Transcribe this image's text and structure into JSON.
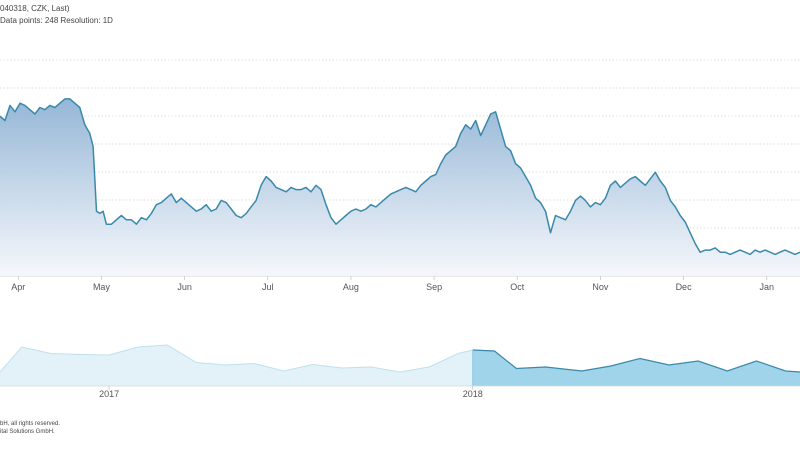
{
  "header": {
    "line1": "040318, CZK, Last)",
    "line2": "Data points: 248 Resolution: 1D"
  },
  "footer": {
    "line1": "bH, all rights reserved.",
    "line2": "ital Solutions GmbH."
  },
  "colors": {
    "line": "#3a89aa",
    "area_top": "#8fb3d4",
    "area_bottom": "#f4f6fb",
    "grid": "#d3d3d3",
    "navigator_light": "#e3f2f8",
    "navigator_selected": "#9fd4ea",
    "navigator_line": "#7cc3e0"
  },
  "chart_data": [
    {
      "type": "area",
      "name": "main-price-chart",
      "grid": "horizontal-dotted",
      "x_tick_labels": [
        "Apr",
        "May",
        "Jun",
        "Jul",
        "Aug",
        "Sep",
        "Oct",
        "Nov",
        "Dec",
        "Jan"
      ],
      "x_tick_positions": [
        0.5,
        1.5,
        2.5,
        3.5,
        4.5,
        5.5,
        6.5,
        7.5,
        8.5,
        9.5
      ],
      "x_range": [
        0.28,
        9.9
      ],
      "y_range": [
        0,
        100
      ],
      "series_points": [
        [
          0.28,
          74
        ],
        [
          0.34,
          72
        ],
        [
          0.4,
          79
        ],
        [
          0.46,
          76
        ],
        [
          0.52,
          80
        ],
        [
          0.58,
          79
        ],
        [
          0.64,
          77
        ],
        [
          0.7,
          75
        ],
        [
          0.76,
          78
        ],
        [
          0.82,
          77
        ],
        [
          0.88,
          79
        ],
        [
          0.94,
          78
        ],
        [
          1.0,
          80
        ],
        [
          1.06,
          82
        ],
        [
          1.12,
          82
        ],
        [
          1.18,
          80
        ],
        [
          1.24,
          78
        ],
        [
          1.3,
          70
        ],
        [
          1.36,
          66
        ],
        [
          1.4,
          60
        ],
        [
          1.44,
          30
        ],
        [
          1.48,
          29
        ],
        [
          1.52,
          30
        ],
        [
          1.56,
          24
        ],
        [
          1.62,
          24
        ],
        [
          1.68,
          26
        ],
        [
          1.74,
          28
        ],
        [
          1.8,
          26
        ],
        [
          1.86,
          26
        ],
        [
          1.92,
          24
        ],
        [
          1.98,
          27
        ],
        [
          2.04,
          26
        ],
        [
          2.1,
          29
        ],
        [
          2.16,
          33
        ],
        [
          2.22,
          34
        ],
        [
          2.28,
          36
        ],
        [
          2.34,
          38
        ],
        [
          2.4,
          34
        ],
        [
          2.46,
          36
        ],
        [
          2.52,
          34
        ],
        [
          2.58,
          32
        ],
        [
          2.64,
          30
        ],
        [
          2.7,
          31
        ],
        [
          2.76,
          33
        ],
        [
          2.82,
          30
        ],
        [
          2.88,
          31
        ],
        [
          2.94,
          35
        ],
        [
          3.0,
          34
        ],
        [
          3.06,
          31
        ],
        [
          3.12,
          28
        ],
        [
          3.18,
          27
        ],
        [
          3.24,
          29
        ],
        [
          3.3,
          32
        ],
        [
          3.36,
          35
        ],
        [
          3.42,
          42
        ],
        [
          3.48,
          46
        ],
        [
          3.54,
          44
        ],
        [
          3.6,
          41
        ],
        [
          3.66,
          40
        ],
        [
          3.72,
          39
        ],
        [
          3.78,
          41
        ],
        [
          3.84,
          40
        ],
        [
          3.9,
          40
        ],
        [
          3.96,
          41
        ],
        [
          4.02,
          39
        ],
        [
          4.08,
          42
        ],
        [
          4.14,
          40
        ],
        [
          4.2,
          33
        ],
        [
          4.26,
          27
        ],
        [
          4.32,
          24
        ],
        [
          4.38,
          26
        ],
        [
          4.44,
          28
        ],
        [
          4.5,
          30
        ],
        [
          4.56,
          31
        ],
        [
          4.62,
          30
        ],
        [
          4.68,
          31
        ],
        [
          4.74,
          33
        ],
        [
          4.8,
          32
        ],
        [
          4.86,
          34
        ],
        [
          4.92,
          36
        ],
        [
          4.98,
          38
        ],
        [
          5.04,
          39
        ],
        [
          5.1,
          40
        ],
        [
          5.16,
          41
        ],
        [
          5.22,
          40
        ],
        [
          5.28,
          39
        ],
        [
          5.34,
          42
        ],
        [
          5.4,
          44
        ],
        [
          5.46,
          46
        ],
        [
          5.52,
          47
        ],
        [
          5.58,
          52
        ],
        [
          5.64,
          56
        ],
        [
          5.7,
          58
        ],
        [
          5.76,
          60
        ],
        [
          5.82,
          66
        ],
        [
          5.88,
          70
        ],
        [
          5.94,
          68
        ],
        [
          6.0,
          72
        ],
        [
          6.06,
          65
        ],
        [
          6.12,
          70
        ],
        [
          6.18,
          75
        ],
        [
          6.24,
          76
        ],
        [
          6.3,
          68
        ],
        [
          6.36,
          60
        ],
        [
          6.42,
          58
        ],
        [
          6.48,
          52
        ],
        [
          6.54,
          50
        ],
        [
          6.6,
          46
        ],
        [
          6.66,
          42
        ],
        [
          6.72,
          36
        ],
        [
          6.78,
          34
        ],
        [
          6.84,
          30
        ],
        [
          6.9,
          20
        ],
        [
          6.96,
          28
        ],
        [
          7.02,
          27
        ],
        [
          7.08,
          26
        ],
        [
          7.14,
          30
        ],
        [
          7.2,
          35
        ],
        [
          7.26,
          37
        ],
        [
          7.32,
          35
        ],
        [
          7.38,
          32
        ],
        [
          7.44,
          34
        ],
        [
          7.5,
          33
        ],
        [
          7.56,
          36
        ],
        [
          7.62,
          42
        ],
        [
          7.68,
          44
        ],
        [
          7.74,
          41
        ],
        [
          7.8,
          43
        ],
        [
          7.86,
          45
        ],
        [
          7.92,
          46
        ],
        [
          7.98,
          44
        ],
        [
          8.04,
          42
        ],
        [
          8.1,
          45
        ],
        [
          8.16,
          48
        ],
        [
          8.22,
          44
        ],
        [
          8.28,
          41
        ],
        [
          8.34,
          35
        ],
        [
          8.4,
          32
        ],
        [
          8.46,
          28
        ],
        [
          8.52,
          25
        ],
        [
          8.58,
          20
        ],
        [
          8.64,
          15
        ],
        [
          8.7,
          11
        ],
        [
          8.76,
          12
        ],
        [
          8.82,
          12
        ],
        [
          8.88,
          13
        ],
        [
          8.94,
          11
        ],
        [
          9.0,
          11
        ],
        [
          9.06,
          10
        ],
        [
          9.12,
          11
        ],
        [
          9.18,
          12
        ],
        [
          9.24,
          11
        ],
        [
          9.3,
          10
        ],
        [
          9.36,
          12
        ],
        [
          9.42,
          11
        ],
        [
          9.48,
          12
        ],
        [
          9.54,
          11
        ],
        [
          9.6,
          10
        ],
        [
          9.66,
          11
        ],
        [
          9.72,
          12
        ],
        [
          9.78,
          11
        ],
        [
          9.84,
          10
        ],
        [
          9.9,
          11
        ]
      ]
    },
    {
      "type": "area",
      "name": "navigator-chart",
      "x_tick_labels": [
        "2017",
        "2018"
      ],
      "x_tick_positions": [
        1.0,
        2.0
      ],
      "x_range": [
        0.7,
        2.9
      ],
      "y_range": [
        0,
        100
      ],
      "selected_range": [
        2.0,
        2.9
      ],
      "series_points": [
        [
          0.7,
          28
        ],
        [
          0.76,
          78
        ],
        [
          0.84,
          65
        ],
        [
          0.92,
          63
        ],
        [
          1.0,
          62
        ],
        [
          1.08,
          78
        ],
        [
          1.16,
          82
        ],
        [
          1.24,
          47
        ],
        [
          1.32,
          42
        ],
        [
          1.4,
          45
        ],
        [
          1.48,
          30
        ],
        [
          1.56,
          43
        ],
        [
          1.64,
          36
        ],
        [
          1.72,
          38
        ],
        [
          1.8,
          28
        ],
        [
          1.88,
          38
        ],
        [
          1.96,
          65
        ],
        [
          2.0,
          72
        ],
        [
          2.06,
          70
        ],
        [
          2.12,
          35
        ],
        [
          2.2,
          38
        ],
        [
          2.3,
          30
        ],
        [
          2.38,
          40
        ],
        [
          2.46,
          55
        ],
        [
          2.54,
          42
        ],
        [
          2.62,
          50
        ],
        [
          2.7,
          30
        ],
        [
          2.78,
          50
        ],
        [
          2.86,
          30
        ],
        [
          2.9,
          28
        ]
      ]
    }
  ]
}
